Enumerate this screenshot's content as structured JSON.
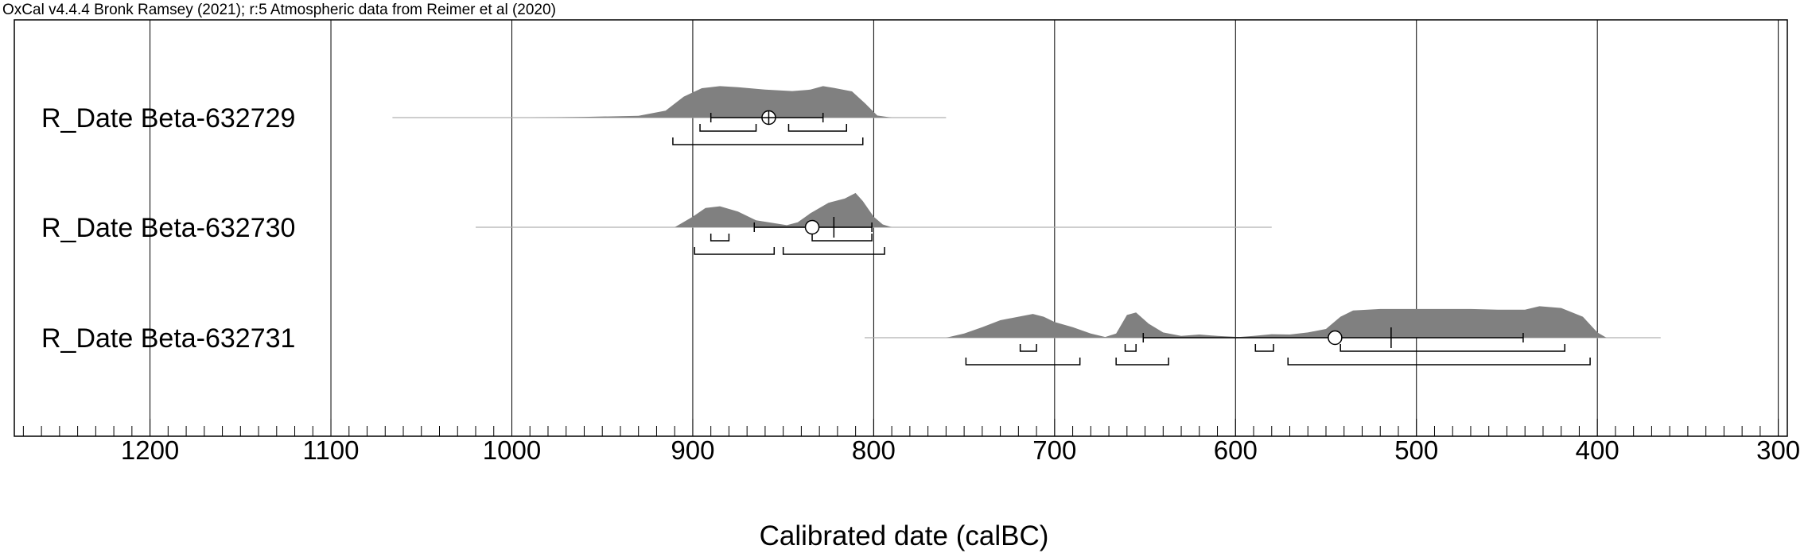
{
  "header": "OxCal v4.4.4 Bronk Ramsey (2021); r:5 Atmospheric data from Reimer et al (2020)",
  "chart_data": {
    "type": "area",
    "title": "",
    "xlabel": "Calibrated date (calBC)",
    "ylabel": "",
    "x_reversed": true,
    "xlim": [
      1275,
      295
    ],
    "major_ticks": [
      1200,
      1100,
      1000,
      900,
      800,
      700,
      600,
      500,
      400,
      300
    ],
    "tick_labels": [
      "1200",
      "1100",
      "1000",
      "900",
      "800",
      "700",
      "600",
      "500",
      "400",
      "300"
    ],
    "minor_tick_step": 10,
    "grid": true,
    "fill_color": "#808080",
    "series": [
      {
        "name": "R_Date Beta-632729",
        "line_range": [
          1066,
          760
        ],
        "distribution": [
          [
            1066,
            0
          ],
          [
            990,
            0
          ],
          [
            960,
            0.02
          ],
          [
            930,
            0.05
          ],
          [
            915,
            0.2
          ],
          [
            905,
            0.6
          ],
          [
            895,
            0.84
          ],
          [
            885,
            0.9
          ],
          [
            875,
            0.87
          ],
          [
            860,
            0.8
          ],
          [
            845,
            0.76
          ],
          [
            835,
            0.8
          ],
          [
            828,
            0.9
          ],
          [
            822,
            0.85
          ],
          [
            812,
            0.75
          ],
          [
            805,
            0.42
          ],
          [
            798,
            0.06
          ],
          [
            790,
            0
          ]
        ],
        "marker": 858,
        "marker_style": "cross",
        "sigma_bar": [
          890,
          828
        ],
        "sigma_tick": null,
        "range_1sigma": [
          [
            896,
            865
          ],
          [
            847,
            815
          ]
        ],
        "range_2sigma": [
          [
            911,
            806
          ]
        ]
      },
      {
        "name": "R_Date Beta-632730",
        "line_range": [
          1020,
          580
        ],
        "distribution": [
          [
            910,
            0
          ],
          [
            900,
            0.3
          ],
          [
            893,
            0.55
          ],
          [
            885,
            0.6
          ],
          [
            875,
            0.45
          ],
          [
            865,
            0.2
          ],
          [
            848,
            0.06
          ],
          [
            842,
            0.14
          ],
          [
            835,
            0.4
          ],
          [
            825,
            0.7
          ],
          [
            816,
            0.82
          ],
          [
            810,
            0.98
          ],
          [
            806,
            0.75
          ],
          [
            800,
            0.3
          ],
          [
            795,
            0.08
          ],
          [
            790,
            0
          ]
        ],
        "marker": 834,
        "marker_style": "open",
        "sigma_bar": [
          866,
          801
        ],
        "sigma_tick": 822,
        "range_1sigma": [
          [
            890,
            880
          ],
          [
            834,
            801
          ]
        ],
        "range_2sigma": [
          [
            899,
            855
          ],
          [
            850,
            794
          ]
        ]
      },
      {
        "name": "R_Date Beta-632731",
        "line_range": [
          805,
          365
        ],
        "distribution": [
          [
            760,
            0
          ],
          [
            750,
            0.12
          ],
          [
            740,
            0.3
          ],
          [
            730,
            0.5
          ],
          [
            720,
            0.6
          ],
          [
            712,
            0.68
          ],
          [
            706,
            0.6
          ],
          [
            700,
            0.45
          ],
          [
            690,
            0.3
          ],
          [
            680,
            0.12
          ],
          [
            672,
            0.02
          ],
          [
            666,
            0.12
          ],
          [
            660,
            0.65
          ],
          [
            655,
            0.72
          ],
          [
            648,
            0.4
          ],
          [
            640,
            0.15
          ],
          [
            630,
            0.05
          ],
          [
            620,
            0.09
          ],
          [
            610,
            0.05
          ],
          [
            598,
            0.02
          ],
          [
            590,
            0.05
          ],
          [
            580,
            0.1
          ],
          [
            570,
            0.09
          ],
          [
            560,
            0.15
          ],
          [
            550,
            0.25
          ],
          [
            542,
            0.6
          ],
          [
            535,
            0.78
          ],
          [
            520,
            0.82
          ],
          [
            500,
            0.82
          ],
          [
            470,
            0.82
          ],
          [
            455,
            0.8
          ],
          [
            440,
            0.8
          ],
          [
            432,
            0.9
          ],
          [
            420,
            0.85
          ],
          [
            408,
            0.6
          ],
          [
            400,
            0.15
          ],
          [
            395,
            0
          ]
        ],
        "marker": 545,
        "marker_style": "open",
        "sigma_bar": [
          651,
          441
        ],
        "sigma_tick": 514,
        "range_1sigma": [
          [
            719,
            710
          ],
          [
            661,
            655
          ],
          [
            589,
            579
          ],
          [
            542,
            418
          ]
        ],
        "range_2sigma": [
          [
            749,
            686
          ],
          [
            666,
            637
          ],
          [
            571,
            404
          ]
        ]
      }
    ]
  }
}
